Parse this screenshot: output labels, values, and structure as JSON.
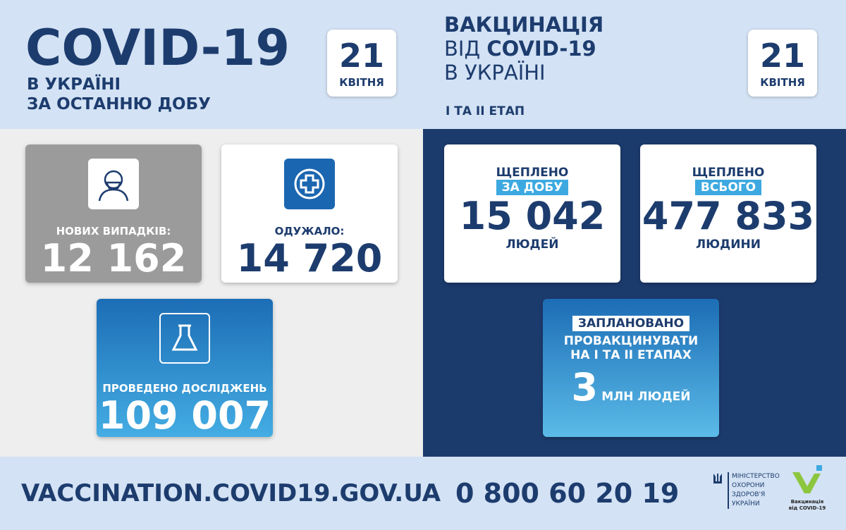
{
  "left": {
    "title": "COVID-19",
    "subtitle1": "В УКРАЇНІ",
    "subtitle2": "ЗА ОСТАННЮ ДОБУ",
    "date_day": "21",
    "date_month": "КВІТНЯ",
    "new_cases": {
      "label": "НОВИХ ВИПАДКІВ:",
      "value": "12 162"
    },
    "recovered": {
      "label": "ОДУЖАЛО:",
      "value": "14 720"
    },
    "tests": {
      "label": "ПРОВЕДЕНО ДОСЛІДЖЕНЬ",
      "value": "109 007"
    }
  },
  "right": {
    "title1": "ВАКЦИНАЦІЯ",
    "title2_prefix": "ВІД ",
    "title2_bold": "COVID-19",
    "title3": "В УКРАЇНІ",
    "stage": "І ТА ІІ ЕТАП",
    "date_day": "21",
    "date_month": "КВІТНЯ",
    "daily": {
      "label": "ЩЕПЛЕНО",
      "tag": "ЗА ДОБУ",
      "value": "15 042",
      "unit": "ЛЮДЕЙ"
    },
    "total": {
      "label": "ЩЕПЛЕНО",
      "tag": "ВСЬОГО",
      "value": "477 833",
      "unit": "ЛЮДИНИ"
    },
    "planned": {
      "tag": "ЗАПЛАНОВАНО",
      "line1": "ПРОВАКЦИНУВАТИ",
      "line2": "НА І ТА ІІ ЕТАПАХ",
      "value": "3",
      "unit": "МЛН ЛЮДЕЙ"
    }
  },
  "footer": {
    "url": "VACCINATION.COVID19.GOV.UA",
    "phone": "0 800 60 20 19",
    "ministry": [
      "МІНІСТЕРСТВО",
      "ОХОРОНИ",
      "ЗДОРОВ'Я",
      "УКРАЇНИ"
    ],
    "vacc_logo": [
      "Вакцинація",
      "від COVID-19"
    ]
  },
  "colors": {
    "navy": "#1d3c6e",
    "light_blue": "#d3e2f4",
    "accent": "#3da9e0",
    "gray_card": "#9b9b9b",
    "green": "#8cc63f"
  }
}
